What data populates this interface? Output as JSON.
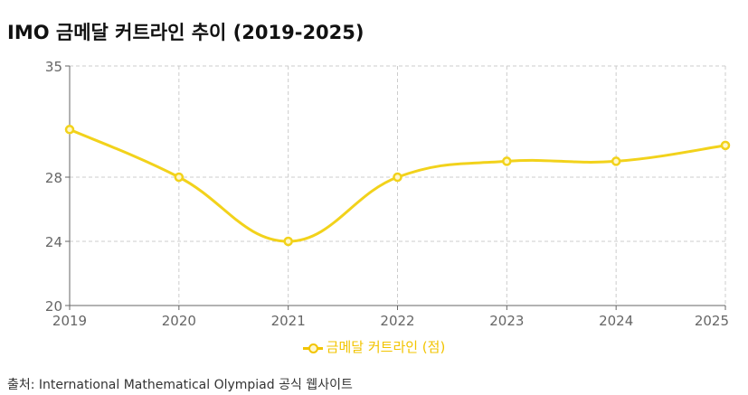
{
  "page": {
    "title": "IMO 금메달 커트라인 추이 (2019-2025)",
    "source": "출처: International Mathematical Olympiad 공식 웹사이트"
  },
  "chart_data": {
    "type": "line",
    "title": "IMO 금메달 커트라인 추이 (2019-2025)",
    "categories": [
      "2019",
      "2020",
      "2021",
      "2022",
      "2023",
      "2024",
      "2025"
    ],
    "series": [
      {
        "name": "금메달 커트라인 (점)",
        "values": [
          31,
          28,
          24,
          28,
          29,
          29,
          30
        ],
        "color": "#f2d21b"
      }
    ],
    "yticks": [
      "20",
      "24",
      "28",
      "35"
    ],
    "ylim": [
      20,
      35
    ],
    "grid": true,
    "legend_position": "bottom"
  }
}
